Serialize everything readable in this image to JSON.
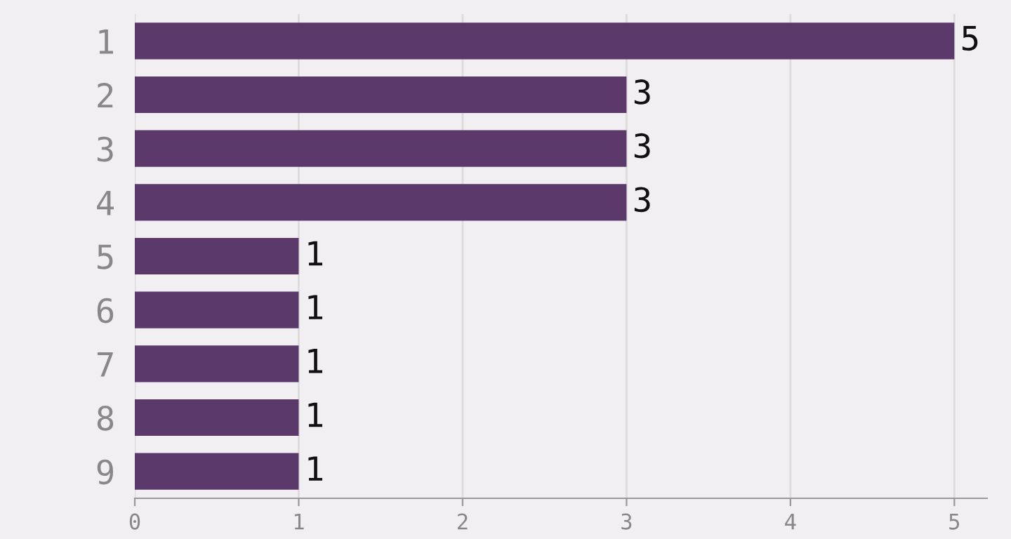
{
  "chart_data": {
    "type": "bar",
    "orientation": "horizontal",
    "categories": [
      "1",
      "2",
      "3",
      "4",
      "5",
      "6",
      "7",
      "8",
      "9"
    ],
    "values": [
      5,
      3,
      3,
      3,
      1,
      1,
      1,
      1,
      1
    ],
    "color": "#5b3a6b",
    "xlim": [
      0,
      5.2
    ],
    "xticks": [
      0,
      1,
      2,
      3,
      4,
      5
    ],
    "grid": "x",
    "data_labels": true
  }
}
